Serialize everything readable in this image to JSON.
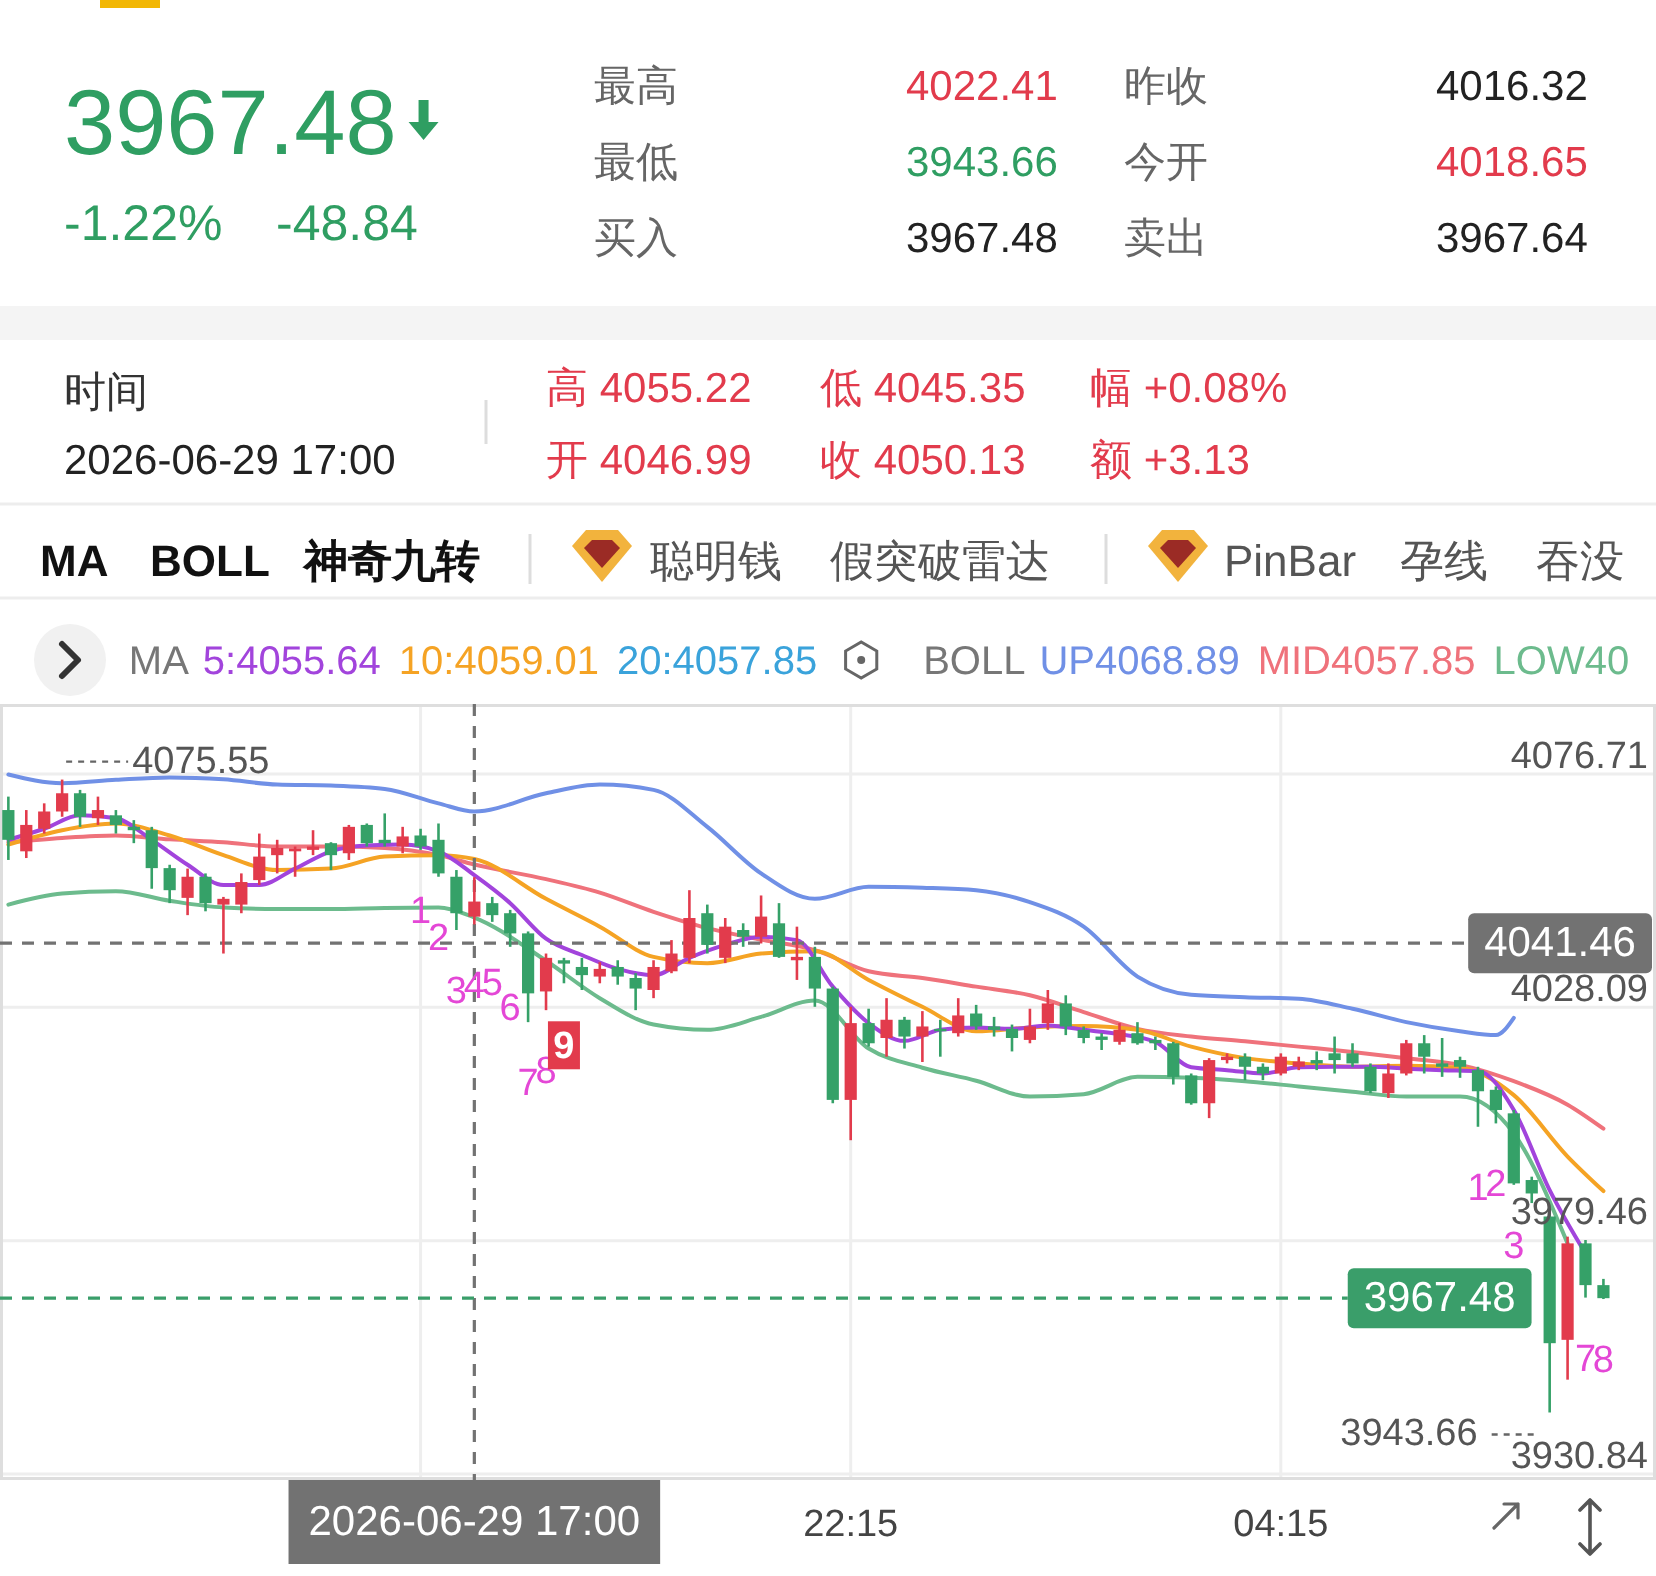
{
  "chart_data": [
    {
      "type": "other",
      "annotations": [
        "3967.48",
        "-1.22%",
        "-48.84",
        "最高",
        "4022.41",
        "昨收",
        "4016.32",
        "最低",
        "3943.66",
        "今开",
        "4018.65",
        "买入",
        "3967.48",
        "卖出",
        "3967.64",
        "时间",
        "2026-06-29 17:00",
        "高 4055.22",
        "低 4045.35",
        "幅 +0.08%",
        "开 4046.99",
        "收 4050.13",
        "额 +3.13",
        "MA",
        "BOLL",
        "神奇九转",
        "聪明钱",
        "假突破雷达",
        "PinBar",
        "孕线",
        "吞没"
      ]
    },
    {
      "type": "candlestick",
      "x": [
        "2026-06-29T10:30",
        "2026-06-29T10:45",
        "2026-06-29T11:00",
        "2026-06-29T11:15",
        "2026-06-29T11:30",
        "2026-06-29T11:45",
        "2026-06-29T12:00",
        "2026-06-29T12:15",
        "2026-06-29T12:30",
        "2026-06-29T12:45",
        "2026-06-29T13:00",
        "2026-06-29T13:15",
        "2026-06-29T13:30",
        "2026-06-29T13:45",
        "2026-06-29T14:00",
        "2026-06-29T14:15",
        "2026-06-29T14:30",
        "2026-06-29T14:45",
        "2026-06-29T15:00",
        "2026-06-29T15:15",
        "2026-06-29T15:30",
        "2026-06-29T15:45",
        "2026-06-29T16:00",
        "2026-06-29T16:15",
        "2026-06-29T16:30",
        "2026-06-29T16:45",
        "2026-06-29T17:00",
        "2026-06-29T17:15",
        "2026-06-29T17:30",
        "2026-06-29T17:45",
        "2026-06-29T18:00",
        "2026-06-29T18:15",
        "2026-06-29T18:30",
        "2026-06-29T18:45",
        "2026-06-29T19:00",
        "2026-06-29T19:15",
        "2026-06-29T19:30",
        "2026-06-29T19:45",
        "2026-06-29T20:00",
        "2026-06-29T20:15",
        "2026-06-29T20:30",
        "2026-06-29T20:45",
        "2026-06-29T21:00",
        "2026-06-29T21:15",
        "2026-06-29T21:30",
        "2026-06-29T21:45",
        "2026-06-29T22:00",
        "2026-06-29T22:15",
        "2026-06-29T22:30",
        "2026-06-29T22:45",
        "2026-06-29T23:00",
        "2026-06-29T23:15",
        "2026-06-29T23:30",
        "2026-06-29T23:45",
        "2026-06-30T00:00",
        "2026-06-30T00:15",
        "2026-06-30T00:30",
        "2026-06-30T00:45",
        "2026-06-30T01:00",
        "2026-06-30T01:15",
        "2026-06-30T01:30",
        "2026-06-30T01:45",
        "2026-06-30T02:00",
        "2026-06-30T02:15",
        "2026-06-30T02:30",
        "2026-06-30T02:45",
        "2026-06-30T03:00",
        "2026-06-30T03:15",
        "2026-06-30T03:30",
        "2026-06-30T03:45",
        "2026-06-30T04:00",
        "2026-06-30T04:15",
        "2026-06-30T04:30",
        "2026-06-30T04:45",
        "2026-06-30T05:00",
        "2026-06-30T05:15",
        "2026-06-30T05:30",
        "2026-06-30T05:45",
        "2026-06-30T06:00",
        "2026-06-30T06:15",
        "2026-06-30T06:30",
        "2026-06-30T06:45",
        "2026-06-30T07:00",
        "2026-06-30T07:15",
        "2026-06-30T07:30",
        "2026-06-30T07:45",
        "2026-06-30T08:00",
        "2026-06-30T08:15",
        "2026-06-30T08:30",
        "2026-06-30T08:45"
      ],
      "ohlc": [
        [
          4069.2,
          4072.0,
          4058.8,
          4063.0
        ],
        [
          4060.6,
          4069.2,
          4059.2,
          4066.1
        ],
        [
          4065.3,
          4070.6,
          4064.3,
          4068.9
        ],
        [
          4068.9,
          4075.55,
          4067.8,
          4072.7
        ],
        [
          4072.7,
          4073.4,
          4065.7,
          4067.8
        ],
        [
          4067.5,
          4072.0,
          4066.1,
          4069.2
        ],
        [
          4068.1,
          4069.2,
          4064.3,
          4066.1
        ],
        [
          4065.7,
          4067.1,
          4062.3,
          4065.0
        ],
        [
          4065.0,
          4065.7,
          4052.8,
          4057.1
        ],
        [
          4057.1,
          4057.8,
          4049.8,
          4052.5
        ],
        [
          4050.9,
          4057.0,
          4047.3,
          4055.3
        ],
        [
          4055.3,
          4056.0,
          4048.1,
          4049.8
        ],
        [
          4049.5,
          4051.1,
          4039.3,
          4050.7
        ],
        [
          4049.5,
          4056.0,
          4047.7,
          4054.2
        ],
        [
          4054.6,
          4064.3,
          4053.6,
          4059.5
        ],
        [
          4059.8,
          4063.0,
          4056.0,
          4061.3
        ],
        [
          4060.6,
          4061.6,
          4055.3,
          4061.2
        ],
        [
          4060.9,
          4065.0,
          4059.8,
          4061.6
        ],
        [
          4062.3,
          4062.5,
          4056.7,
          4059.8
        ],
        [
          4060.2,
          4066.1,
          4058.8,
          4065.7
        ],
        [
          4066.1,
          4066.4,
          4061.6,
          4062.3
        ],
        [
          4063.0,
          4068.5,
          4061.6,
          4062.3
        ],
        [
          4061.6,
          4065.7,
          4060.2,
          4063.7
        ],
        [
          4063.9,
          4065.3,
          4060.9,
          4061.6
        ],
        [
          4063.0,
          4066.4,
          4055.3,
          4056.0
        ],
        [
          4055.3,
          4056.7,
          4044.2,
          4047.7
        ],
        [
          4046.99,
          4055.22,
          4045.35,
          4050.13
        ],
        [
          4049.8,
          4051.1,
          4045.9,
          4047.3
        ],
        [
          4047.7,
          4048.4,
          4040.7,
          4043.5
        ],
        [
          4043.5,
          4043.9,
          4025.0,
          4031.0
        ],
        [
          4031.4,
          4039.3,
          4027.5,
          4038.4
        ],
        [
          4037.9,
          4038.4,
          4033.1,
          4037.2
        ],
        [
          4036.5,
          4038.4,
          4031.7,
          4034.8
        ],
        [
          4034.5,
          4037.5,
          4033.1,
          4036.1
        ],
        [
          4036.5,
          4037.9,
          4032.8,
          4034.5
        ],
        [
          4034.2,
          4035.2,
          4027.5,
          4032.0
        ],
        [
          4031.7,
          4037.9,
          4030.0,
          4036.5
        ],
        [
          4035.6,
          4042.1,
          4035.2,
          4039.3
        ],
        [
          4038.4,
          4052.5,
          4037.3,
          4046.7
        ],
        [
          4047.7,
          4049.5,
          4039.3,
          4041.1
        ],
        [
          4038.4,
          4046.7,
          4037.3,
          4044.9
        ],
        [
          4044.2,
          4045.6,
          4040.7,
          4042.8
        ],
        [
          4042.8,
          4051.4,
          4041.4,
          4047.0
        ],
        [
          4045.6,
          4049.8,
          4038.4,
          4038.6
        ],
        [
          4037.9,
          4044.9,
          4033.8,
          4038.6
        ],
        [
          4038.6,
          4040.7,
          4028.2,
          4032.0
        ],
        [
          4032.0,
          4032.4,
          4008.1,
          4008.8
        ],
        [
          4008.8,
          4028.2,
          4000.4,
          4024.8
        ],
        [
          4024.8,
          4027.8,
          4019.9,
          4020.6
        ],
        [
          4021.7,
          4030.0,
          4017.8,
          4025.5
        ],
        [
          4025.5,
          4026.1,
          4019.5,
          4022.0
        ],
        [
          4022.0,
          4027.3,
          4016.7,
          4024.1
        ],
        [
          4023.6,
          4025.5,
          4017.8,
          4023.1
        ],
        [
          4022.7,
          4030.0,
          4022.0,
          4026.4
        ],
        [
          4026.8,
          4028.6,
          4023.4,
          4024.1
        ],
        [
          4024.1,
          4026.1,
          4022.0,
          4023.4
        ],
        [
          4023.6,
          4024.5,
          4018.9,
          4021.7
        ],
        [
          4021.3,
          4027.8,
          4020.6,
          4024.1
        ],
        [
          4024.8,
          4031.7,
          4023.4,
          4028.9
        ],
        [
          4028.9,
          4030.6,
          4022.3,
          4024.1
        ],
        [
          4023.4,
          4024.1,
          4020.6,
          4021.7
        ],
        [
          4022.0,
          4022.7,
          4019.2,
          4021.3
        ],
        [
          4020.9,
          4024.8,
          4020.3,
          4023.4
        ],
        [
          4022.7,
          4025.0,
          4020.3,
          4020.6
        ],
        [
          4021.3,
          4022.0,
          4019.2,
          4020.6
        ],
        [
          4020.6,
          4020.9,
          4012.0,
          4013.6
        ],
        [
          4013.9,
          4014.3,
          4007.8,
          4008.1
        ],
        [
          4008.1,
          4017.5,
          4005.0,
          4017.1
        ],
        [
          4017.1,
          4018.5,
          4016.4,
          4017.8
        ],
        [
          4017.8,
          4018.5,
          4012.9,
          4015.7
        ],
        [
          4015.7,
          4016.4,
          4012.9,
          4014.3
        ],
        [
          4014.3,
          4018.5,
          4013.9,
          4017.8
        ],
        [
          4015.7,
          4017.8,
          4015.0,
          4016.8
        ],
        [
          4017.1,
          4018.9,
          4015.0,
          4016.4
        ],
        [
          4018.5,
          4022.0,
          4014.3,
          4017.1
        ],
        [
          4018.5,
          4020.6,
          4015.7,
          4016.4
        ],
        [
          4015.7,
          4016.4,
          4010.2,
          4010.6
        ],
        [
          4010.2,
          4016.4,
          4009.2,
          4014.3
        ],
        [
          4014.3,
          4021.3,
          4013.9,
          4020.6
        ],
        [
          4020.6,
          4022.3,
          4014.3,
          4017.8
        ],
        [
          4016.4,
          4021.7,
          4013.6,
          4015.7
        ],
        [
          4017.1,
          4017.8,
          4013.4,
          4015.7
        ],
        [
          4015.0,
          4015.7,
          4003.2,
          4010.6
        ],
        [
          4010.9,
          4011.6,
          4003.9,
          4006.7
        ],
        [
          4006.0,
          4006.7,
          3991.1,
          3991.4
        ],
        [
          3992.1,
          3992.8,
          3987.3,
          3989.3
        ],
        [
          3984.5,
          3985.2,
          3943.66,
          3958.1
        ],
        [
          3958.8,
          3980.3,
          3950.5,
          3978.9
        ],
        [
          3978.9,
          3979.6,
          3967.6,
          3970.2
        ],
        [
          3970.2,
          3971.5,
          3967.3,
          3967.48
        ]
      ],
      "colors": [
        "#35a168",
        "#e23b4c",
        "#e23b4c",
        "#e23b4c",
        "#35a168",
        "#e23b4c",
        "#35a168",
        "#35a168",
        "#35a168",
        "#35a168",
        "#e23b4c",
        "#35a168",
        "#e23b4c",
        "#e23b4c",
        "#e23b4c",
        "#e23b4c",
        "#e23b4c",
        "#e23b4c",
        "#35a168",
        "#e23b4c",
        "#35a168",
        "#35a168",
        "#e23b4c",
        "#35a168",
        "#35a168",
        "#35a168",
        "#e23b4c",
        "#35a168",
        "#35a168",
        "#35a168",
        "#e23b4c",
        "#35a168",
        "#35a168",
        "#e23b4c",
        "#35a168",
        "#35a168",
        "#e23b4c",
        "#e23b4c",
        "#e23b4c",
        "#35a168",
        "#e23b4c",
        "#35a168",
        "#e23b4c",
        "#35a168",
        "#e23b4c",
        "#35a168",
        "#35a168",
        "#e23b4c",
        "#35a168",
        "#e23b4c",
        "#35a168",
        "#e23b4c",
        "#35a168",
        "#e23b4c",
        "#35a168",
        "#35a168",
        "#35a168",
        "#e23b4c",
        "#e23b4c",
        "#35a168",
        "#35a168",
        "#35a168",
        "#e23b4c",
        "#35a168",
        "#35a168",
        "#35a168",
        "#35a168",
        "#e23b4c",
        "#e23b4c",
        "#35a168",
        "#35a168",
        "#e23b4c",
        "#e23b4c",
        "#35a168",
        "#35a168",
        "#35a168",
        "#35a168",
        "#e23b4c",
        "#e23b4c",
        "#35a168",
        "#35a168",
        "#35a168",
        "#35a168",
        "#35a168",
        "#35a168",
        "#35a168",
        "#35a168",
        "#e23b4c",
        "#35a168",
        "#35a168"
      ],
      "series": [
        {
          "type": "line",
          "name": "5:4055.64",
          "color": "#a244dc",
          "x": [
            "2026-06-29T10:30",
            "2026-06-29T11:00",
            "2026-06-29T11:30",
            "2026-06-29T12:00",
            "2026-06-29T12:30",
            "2026-06-29T13:00",
            "2026-06-29T13:30",
            "2026-06-29T14:00",
            "2026-06-29T14:30",
            "2026-06-29T15:00",
            "2026-06-29T15:30",
            "2026-06-29T16:00",
            "2026-06-29T16:30",
            "2026-06-29T17:00",
            "2026-06-29T17:30",
            "2026-06-29T18:00",
            "2026-06-29T18:30",
            "2026-06-29T19:00",
            "2026-06-29T19:30",
            "2026-06-29T20:00",
            "2026-06-29T20:30",
            "2026-06-29T21:00",
            "2026-06-29T21:30",
            "2026-06-29T22:00",
            "2026-06-29T22:30",
            "2026-06-29T23:00",
            "2026-06-29T23:30",
            "2026-06-30T00:00",
            "2026-06-30T00:30",
            "2026-06-30T01:00",
            "2026-06-30T01:30",
            "2026-06-30T02:00",
            "2026-06-30T02:30",
            "2026-06-30T03:00",
            "2026-06-30T03:30",
            "2026-06-30T04:00",
            "2026-06-30T04:30",
            "2026-06-30T05:00",
            "2026-06-30T05:30",
            "2026-06-30T06:00",
            "2026-06-30T06:30",
            "2026-06-30T07:00",
            "2026-06-30T07:30",
            "2026-06-30T08:00",
            "2026-06-30T08:30"
          ],
          "values": [
            4063.0,
            4065.3,
            4068.1,
            4067.5,
            4063.0,
            4057.8,
            4053.6,
            4053.6,
            4057.0,
            4060.6,
            4061.8,
            4062.0,
            4060.6,
            4055.64,
            4049.8,
            4042.4,
            4039.0,
            4036.1,
            4034.8,
            4038.4,
            4041.1,
            4042.8,
            4042.1,
            4032.4,
            4024.8,
            4021.1,
            4023.4,
            4023.9,
            4023.6,
            4024.3,
            4023.4,
            4022.5,
            4020.9,
            4015.6,
            4015.0,
            4014.3,
            4015.6,
            4015.7,
            4015.7,
            4015.3,
            4015.0,
            4014.8,
            4006.7,
            3990.0,
            3976.8
          ]
        },
        {
          "type": "line",
          "name": "10:4059.01",
          "color": "#f5a324",
          "x": [
            "2026-06-29T10:30",
            "2026-06-29T11:15",
            "2026-06-29T12:00",
            "2026-06-29T12:45",
            "2026-06-29T13:30",
            "2026-06-29T14:15",
            "2026-06-29T15:00",
            "2026-06-29T15:45",
            "2026-06-29T16:30",
            "2026-06-29T17:00",
            "2026-06-29T18:00",
            "2026-06-29T18:45",
            "2026-06-29T19:30",
            "2026-06-29T20:15",
            "2026-06-29T21:00",
            "2026-06-29T21:45",
            "2026-06-29T22:30",
            "2026-06-29T23:15",
            "2026-06-30T00:00",
            "2026-06-30T00:45",
            "2026-06-30T01:30",
            "2026-06-30T02:15",
            "2026-06-30T03:00",
            "2026-06-30T03:45",
            "2026-06-30T04:30",
            "2026-06-30T05:15",
            "2026-06-30T06:00",
            "2026-06-30T06:45",
            "2026-06-30T07:30",
            "2026-06-30T08:15",
            "2026-06-30T08:45"
          ],
          "values": [
            4062.0,
            4065.0,
            4066.4,
            4063.9,
            4059.8,
            4056.7,
            4057.0,
            4059.5,
            4059.8,
            4059.01,
            4050.7,
            4044.9,
            4038.6,
            4037.3,
            4039.3,
            4039.8,
            4033.8,
            4028.2,
            4023.1,
            4023.9,
            4024.2,
            4023.4,
            4019.9,
            4017.5,
            4016.4,
            4015.7,
            4015.9,
            4015.5,
            4009.8,
            3997.0,
            3989.8
          ]
        },
        {
          "type": "line",
          "name": "UP4068.89",
          "color": "#7090e6",
          "x": [
            "2026-06-29T10:30",
            "2026-06-29T11:15",
            "2026-06-29T12:00",
            "2026-06-29T12:45",
            "2026-06-29T13:30",
            "2026-06-29T14:15",
            "2026-06-29T15:00",
            "2026-06-29T15:45",
            "2026-06-29T16:30",
            "2026-06-29T17:00",
            "2026-06-29T18:00",
            "2026-06-29T18:45",
            "2026-06-29T19:30",
            "2026-06-29T20:15",
            "2026-06-29T21:00",
            "2026-06-29T21:45",
            "2026-06-29T22:30",
            "2026-06-29T23:15",
            "2026-06-30T00:00",
            "2026-06-30T00:45",
            "2026-06-30T01:30",
            "2026-06-30T02:15",
            "2026-06-30T03:00",
            "2026-06-30T03:45",
            "2026-06-30T04:30",
            "2026-06-30T05:15",
            "2026-06-30T06:00",
            "2026-06-30T06:45",
            "2026-06-30T07:15",
            "2026-06-30T07:30"
          ],
          "values": [
            4076.6,
            4074.8,
            4075.5,
            4076.0,
            4075.6,
            4074.5,
            4074.3,
            4073.6,
            4070.6,
            4068.89,
            4072.7,
            4074.5,
            4073.4,
            4065.7,
            4056.0,
            4050.7,
            4053.2,
            4053.0,
            4052.5,
            4050.0,
            4044.9,
            4034.5,
            4030.7,
            4030.2,
            4029.9,
            4027.8,
            4025.0,
            4023.1,
            4022.3,
            4025.9
          ]
        },
        {
          "type": "line",
          "name": "MID4057.85",
          "color": "#ef727b",
          "x": [
            "2026-06-29T10:30",
            "2026-06-29T11:15",
            "2026-06-29T12:00",
            "2026-06-29T12:45",
            "2026-06-29T13:30",
            "2026-06-29T14:15",
            "2026-06-29T15:00",
            "2026-06-29T15:45",
            "2026-06-29T16:30",
            "2026-06-29T17:00",
            "2026-06-29T18:00",
            "2026-06-29T18:45",
            "2026-06-29T19:30",
            "2026-06-29T20:15",
            "2026-06-29T21:00",
            "2026-06-29T21:45",
            "2026-06-29T22:30",
            "2026-06-29T23:15",
            "2026-06-30T00:00",
            "2026-06-30T00:45",
            "2026-06-30T01:30",
            "2026-06-30T02:15",
            "2026-06-30T03:00",
            "2026-06-30T03:45",
            "2026-06-30T04:30",
            "2026-06-30T05:15",
            "2026-06-30T06:00",
            "2026-06-30T06:45",
            "2026-06-30T07:30",
            "2026-06-30T08:15",
            "2026-06-30T08:45"
          ],
          "values": [
            4062.5,
            4063.4,
            4063.9,
            4063.1,
            4062.5,
            4061.6,
            4061.6,
            4061.3,
            4059.8,
            4057.85,
            4054.8,
            4052.0,
            4048.0,
            4044.6,
            4042.2,
            4040.0,
            4035.6,
            4034.2,
            4032.4,
            4030.6,
            4027.1,
            4023.6,
            4022.0,
            4021.0,
            4019.9,
            4018.8,
            4017.5,
            4016.1,
            4012.7,
            4007.8,
            4002.8
          ]
        },
        {
          "type": "line",
          "name": "LOW40",
          "color": "#6cbb8d",
          "x": [
            "2026-06-29T10:30",
            "2026-06-29T11:15",
            "2026-06-29T12:00",
            "2026-06-29T12:45",
            "2026-06-29T13:30",
            "2026-06-29T14:15",
            "2026-06-29T15:00",
            "2026-06-29T15:45",
            "2026-06-29T16:30",
            "2026-06-29T17:00",
            "2026-06-29T18:00",
            "2026-06-29T18:45",
            "2026-06-29T19:30",
            "2026-06-29T20:15",
            "2026-06-29T21:00",
            "2026-06-29T21:45",
            "2026-06-29T22:30",
            "2026-06-29T23:15",
            "2026-06-30T00:00",
            "2026-06-30T00:45",
            "2026-06-30T01:30",
            "2026-06-30T02:15",
            "2026-06-30T03:00",
            "2026-06-30T03:45",
            "2026-06-30T04:30",
            "2026-06-30T05:15",
            "2026-06-30T06:00",
            "2026-06-30T06:45",
            "2026-06-30T07:30",
            "2026-06-30T08:15"
          ],
          "values": [
            4049.5,
            4051.8,
            4052.3,
            4050.3,
            4048.9,
            4048.6,
            4048.6,
            4048.8,
            4048.9,
            4046.8,
            4037.8,
            4030.0,
            4024.5,
            4023.4,
            4026.1,
            4029.5,
            4019.5,
            4015.5,
            4012.8,
            4009.5,
            4010.0,
            4013.6,
            4013.4,
            4012.7,
            4011.6,
            4010.5,
            4009.5,
            4009.5,
            4001.8,
            3978.9
          ]
        }
      ],
      "xlim": [
        "2026-06-29T10:23",
        "2026-06-30T09:29"
      ],
      "xticks": [
        {
          "value": "2026-06-29T16:15",
          "label": null
        },
        {
          "value": "2026-06-29T22:15",
          "label": "22:15"
        },
        {
          "value": "2026-06-30T04:15",
          "label": "04:15"
        }
      ],
      "ylim": [
        3929.59,
        4091.3
      ],
      "yticks": [
        3930.84,
        3979.46,
        4028.09,
        4076.71
      ],
      "grid": true,
      "legend": "top",
      "ref_lines": [
        {
          "axis": "y",
          "value": 4041.46,
          "label": "4041.46",
          "color": "#727272",
          "line_style": "dashed"
        },
        {
          "axis": "y",
          "value": 3967.48,
          "label": "3967.48",
          "color": "#3a9e6a",
          "line_style": "dashed"
        },
        {
          "axis": "x",
          "value": "2026-06-29T17:00",
          "label": "2026-06-29 17:00",
          "color": "#727272",
          "line_style": "dashed"
        }
      ],
      "annotations": [
        "MA",
        "20:4057.85",
        "BOLL",
        {
          "text": "4075.55",
          "x": "2026-06-29T11:15",
          "y": 4075.55
        },
        {
          "text": "3943.66",
          "x": "2026-06-30T08:00",
          "y": 3943.66
        },
        {
          "text": "1",
          "x": "2026-06-29T16:15",
          "y": 4060.9
        },
        {
          "text": "2",
          "x": "2026-06-29T16:30",
          "y": 4055.3
        },
        {
          "text": "3",
          "x": "2026-06-29T16:45",
          "y": 4044.2
        },
        {
          "text": "4",
          "x": "2026-06-29T17:00",
          "y": 4045.35
        },
        {
          "text": "5",
          "x": "2026-06-29T17:15",
          "y": 4045.9
        },
        {
          "text": "6",
          "x": "2026-06-29T17:30",
          "y": 4040.7
        },
        {
          "text": "7",
          "x": "2026-06-29T17:45",
          "y": 4025.0
        },
        {
          "text": "8",
          "x": "2026-06-29T18:00",
          "y": 4027.5
        },
        {
          "text": "9",
          "x": "2026-06-29T18:15",
          "y": 4033.1
        },
        {
          "text": "1",
          "x": "2026-06-30T07:00",
          "y": 4003.2
        },
        {
          "text": "2",
          "x": "2026-06-30T07:15",
          "y": 4003.9
        },
        {
          "text": "3",
          "x": "2026-06-30T07:30",
          "y": 3991.1
        },
        {
          "text": "7",
          "x": "2026-06-30T08:30",
          "y": 3967.6
        },
        {
          "text": "8",
          "x": "2026-06-30T08:45",
          "y": 3967.3
        }
      ]
    }
  ]
}
